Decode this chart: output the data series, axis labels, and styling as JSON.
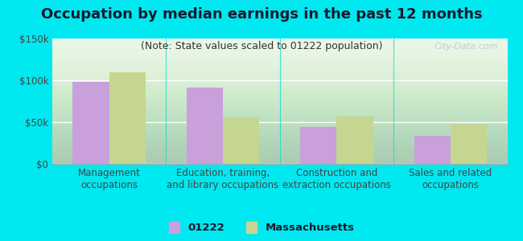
{
  "title": "Occupation by median earnings in the past 12 months",
  "subtitle": "(Note: State values scaled to 01222 population)",
  "categories": [
    "Management\noccupations",
    "Education, training,\nand library occupations",
    "Construction and\nextraction occupations",
    "Sales and related\noccupations"
  ],
  "values_01222": [
    98000,
    91000,
    44000,
    34000
  ],
  "values_mass": [
    110000,
    56000,
    57000,
    47000
  ],
  "color_01222": "#c9a0dc",
  "color_mass": "#c5d690",
  "background_outer": "#00e8f0",
  "background_chart_bottom": "#d4edcc",
  "background_chart_top": "#f5fff5",
  "ylim": [
    0,
    150000
  ],
  "yticks": [
    0,
    50000,
    100000,
    150000
  ],
  "ytick_labels": [
    "$0",
    "$50k",
    "$100k",
    "$150k"
  ],
  "legend_label_01222": "01222",
  "legend_label_mass": "Massachusetts",
  "watermark": "City-Data.com",
  "bar_width": 0.32,
  "title_fontsize": 13,
  "subtitle_fontsize": 9,
  "tick_fontsize": 8.5,
  "legend_fontsize": 9.5,
  "title_color": "#1a1a2e",
  "subtitle_color": "#333333",
  "tick_color": "#444444"
}
